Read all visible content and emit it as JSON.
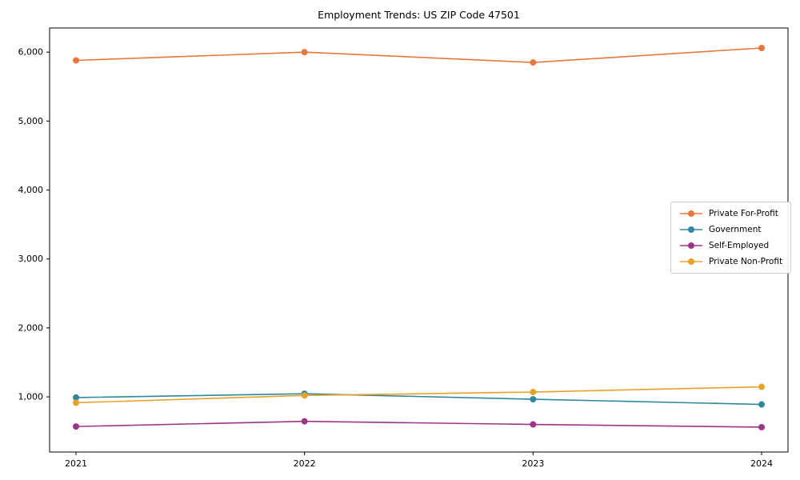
{
  "chart_data": {
    "type": "line",
    "title": "Employment Trends: US ZIP Code 47501",
    "x": [
      "2021",
      "2022",
      "2023",
      "2024"
    ],
    "series": [
      {
        "name": "Private For-Profit",
        "color": "#e8763d",
        "values": [
          5880,
          6000,
          5850,
          6060
        ]
      },
      {
        "name": "Government",
        "color": "#2e879e",
        "values": [
          990,
          1045,
          965,
          890
        ]
      },
      {
        "name": "Self-Employed",
        "color": "#9c3587",
        "values": [
          570,
          645,
          600,
          560
        ]
      },
      {
        "name": "Private Non-Profit",
        "color": "#e9a229",
        "values": [
          915,
          1020,
          1070,
          1145
        ]
      }
    ],
    "yticks": [
      {
        "v": 1000,
        "label": "1,000"
      },
      {
        "v": 2000,
        "label": "2,000"
      },
      {
        "v": 3000,
        "label": "3,000"
      },
      {
        "v": 4000,
        "label": "4,000"
      },
      {
        "v": 5000,
        "label": "5,000"
      },
      {
        "v": 6000,
        "label": "6,000"
      }
    ],
    "ylim": [
      200,
      6350
    ],
    "xlabel": "",
    "ylabel": "",
    "grid": false,
    "legend_position": "center right"
  }
}
